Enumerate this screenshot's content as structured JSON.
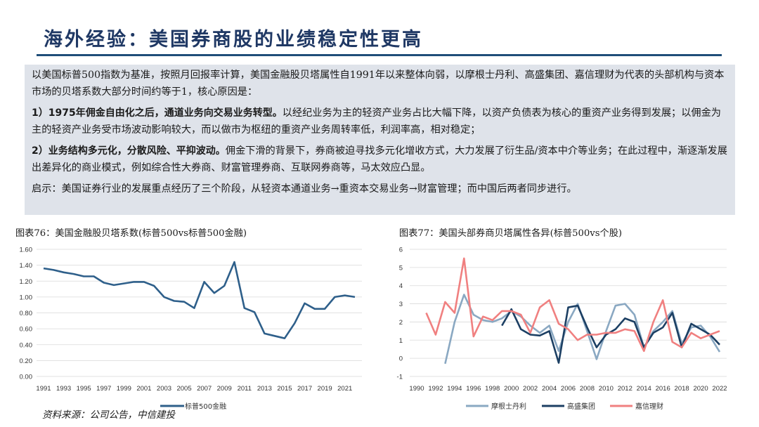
{
  "page": {
    "title": "海外经验：美国券商股的业绩稳定性更高",
    "source": "资料来源：公司公告，中信建投"
  },
  "textbox": {
    "intro": "以美国标普500指数为基准，按照月回报率计算，美国金融股贝塔属性自1991年以来整体向弱，以摩根士丹利、高盛集团、嘉信理财为代表的头部机构与资本市场的贝塔系数大部分时间约等于1，核心原因是：",
    "point1_bold": "1）1975年佣金自由化之后，通道业务向交易业务转型。",
    "point1_text": "以经纪业务为主的轻资产业务占比大幅下降，以资产负债表为核心的重资产业务得到发展；以佣金为主的轻资产业务受市场波动影响较大，而以做市为枢纽的重资产业务周转率低，利润率高，相对稳定；",
    "point2_bold": "2）业务结构多元化，分散风险、平抑波动。",
    "point2_text": "佣金下滑的背景下，券商被迫寻找多元化增收方式，大力发展了衍生品/资本中介等业务；在此过程中，渐逐渐发展出差异化的商业模式，例如综合性大券商、财富管理券商、互联网券商等，马太效应凸显。",
    "conclusion": "启示：美国证券行业的发展重点经历了三个阶段，从轻资本通道业务→重资本交易业务→财富管理；而中国后两者同步进行。"
  },
  "chart_data": [
    {
      "type": "line",
      "title": "图表76：美国金融股贝塔系数(标普500vs标普500金融)",
      "xlabel": "",
      "ylabel": "",
      "ylim": [
        0.0,
        1.6
      ],
      "yticks": [
        "0.00",
        "0.20",
        "0.40",
        "0.60",
        "0.80",
        "1.00",
        "1.20",
        "1.40",
        "1.60"
      ],
      "xticks": [
        "1991",
        "1993",
        "1995",
        "1997",
        "1999",
        "2001",
        "2003",
        "2005",
        "2007",
        "2009",
        "2011",
        "2013",
        "2015",
        "2017",
        "2019",
        "2021"
      ],
      "x": [
        1991,
        1992,
        1993,
        1994,
        1995,
        1996,
        1997,
        1998,
        1999,
        2000,
        2001,
        2002,
        2003,
        2004,
        2005,
        2006,
        2007,
        2008,
        2009,
        2010,
        2011,
        2012,
        2013,
        2014,
        2015,
        2016,
        2017,
        2018,
        2019,
        2020,
        2021,
        2022
      ],
      "series": [
        {
          "name": "标普500金融",
          "color": "#2e5f8a",
          "values": [
            1.36,
            1.34,
            1.31,
            1.29,
            1.26,
            1.26,
            1.18,
            1.15,
            1.17,
            1.19,
            1.19,
            1.14,
            1.0,
            0.95,
            0.94,
            0.86,
            1.19,
            1.05,
            1.14,
            1.44,
            0.86,
            0.81,
            0.54,
            0.51,
            0.48,
            0.67,
            0.92,
            0.85,
            0.85,
            1.0,
            1.02,
            1.0
          ]
        }
      ],
      "legend": "bottom"
    },
    {
      "type": "line",
      "title": "图表77：美国头部券商贝塔属性各异(标普500vs个股)",
      "xlabel": "",
      "ylabel": "",
      "ylim": [
        -1,
        6
      ],
      "yticks": [
        "-1",
        "0",
        "1",
        "2",
        "3",
        "4",
        "5",
        "6"
      ],
      "xticks": [
        "1990",
        "1992",
        "1994",
        "1996",
        "1998",
        "2000",
        "2002",
        "2004",
        "2006",
        "2008",
        "2010",
        "2012",
        "2014",
        "2016",
        "2018",
        "2020",
        "2022"
      ],
      "series": [
        {
          "name": "摩根士丹利",
          "color": "#8aa8c2",
          "x": [
            1993,
            1994,
            1995,
            1996,
            1997,
            1998,
            1999,
            2000,
            2001,
            2002,
            2003,
            2004,
            2005,
            2006,
            2007,
            2008,
            2009,
            2010,
            2011,
            2012,
            2013,
            2014,
            2015,
            2016,
            2017,
            2018,
            2019,
            2020,
            2021,
            2022
          ],
          "values": [
            -0.3,
            2.0,
            3.5,
            2.4,
            2.1,
            2.0,
            2.2,
            2.6,
            2.3,
            1.8,
            1.4,
            1.8,
            0.4,
            2.0,
            3.0,
            1.5,
            -0.05,
            1.5,
            2.9,
            3.0,
            2.4,
            0.6,
            1.5,
            2.0,
            2.6,
            0.8,
            1.7,
            1.8,
            1.2,
            0.35
          ]
        },
        {
          "name": "高盛集团",
          "color": "#1c3f63",
          "x": [
            1999,
            2000,
            2001,
            2002,
            2003,
            2004,
            2005,
            2006,
            2007,
            2008,
            2009,
            2010,
            2011,
            2012,
            2013,
            2014,
            2015,
            2016,
            2017,
            2018,
            2019,
            2020,
            2021,
            2022
          ],
          "values": [
            1.8,
            2.7,
            1.6,
            1.3,
            1.25,
            1.5,
            -0.25,
            2.8,
            2.9,
            1.7,
            0.6,
            1.3,
            1.6,
            2.2,
            2.0,
            0.6,
            1.4,
            1.7,
            2.5,
            0.6,
            1.9,
            1.6,
            1.3,
            0.75
          ]
        },
        {
          "name": "嘉信理财",
          "color": "#f08080",
          "x": [
            1991,
            1992,
            1993,
            1994,
            1995,
            1996,
            1997,
            1998,
            1999,
            2000,
            2001,
            2002,
            2003,
            2004,
            2005,
            2006,
            2007,
            2008,
            2009,
            2010,
            2011,
            2012,
            2013,
            2014,
            2015,
            2016,
            2017,
            2018,
            2019,
            2020,
            2021,
            2022
          ],
          "values": [
            2.5,
            1.3,
            3.1,
            2.5,
            5.5,
            1.2,
            2.3,
            2.1,
            2.6,
            2.6,
            2.4,
            1.4,
            2.8,
            3.2,
            1.9,
            1.6,
            1.0,
            1.3,
            1.3,
            1.4,
            1.4,
            1.6,
            1.5,
            0.4,
            2.0,
            3.2,
            0.9,
            0.6,
            1.4,
            1.1,
            1.3,
            1.5
          ]
        }
      ],
      "legend": "bottom"
    }
  ]
}
